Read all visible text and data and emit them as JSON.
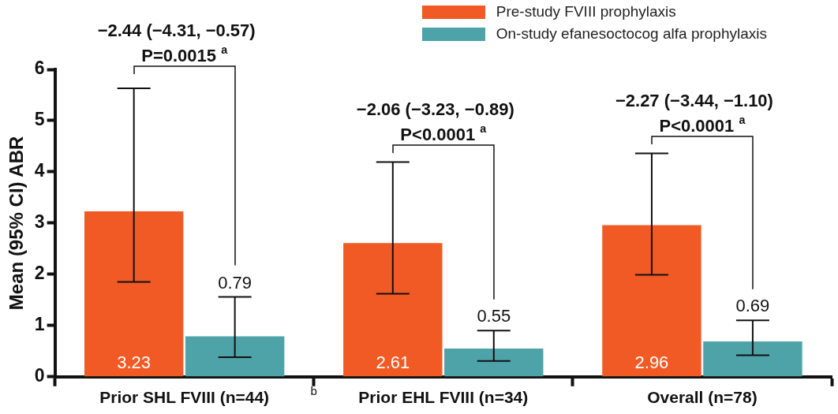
{
  "chart_data": {
    "type": "bar",
    "ylabel": "Mean (95% CI) ABR",
    "categories": [
      "Prior SHL FVIII (n=44)",
      "Prior EHL FVIII (n=34)",
      "Overall (n=78)"
    ],
    "series": [
      {
        "name": "Pre-study FVIII prophylaxis",
        "color": "#f15a24",
        "values": [
          3.23,
          2.61,
          2.96
        ],
        "errors": [
          [
            1.85,
            5.63
          ],
          [
            1.62,
            4.19
          ],
          [
            1.99,
            4.36
          ]
        ]
      },
      {
        "name": "On-study efanesoctocog alfa prophylaxis",
        "color": "#4ea3a8",
        "values": [
          0.79,
          0.55,
          0.69
        ],
        "errors": [
          [
            0.38,
            1.56
          ],
          [
            0.31,
            0.9
          ],
          [
            0.42,
            1.1
          ]
        ]
      }
    ],
    "ylim": [
      0,
      6
    ],
    "yticks": [
      0,
      1,
      2,
      3,
      4,
      5,
      6
    ],
    "grid": false,
    "legend": "top right",
    "data_labels": true,
    "annotations": [
      "−2.44 (−4.31, −0.57)",
      "P=0.0015 $^{a}$",
      "−2.06 (−3.23, −0.89)",
      "P<0.0001 $^{a}$",
      "−2.27 (−3.44, −1.10)",
      "P<0.0001 $^{a}$",
      "b"
    ]
  }
}
